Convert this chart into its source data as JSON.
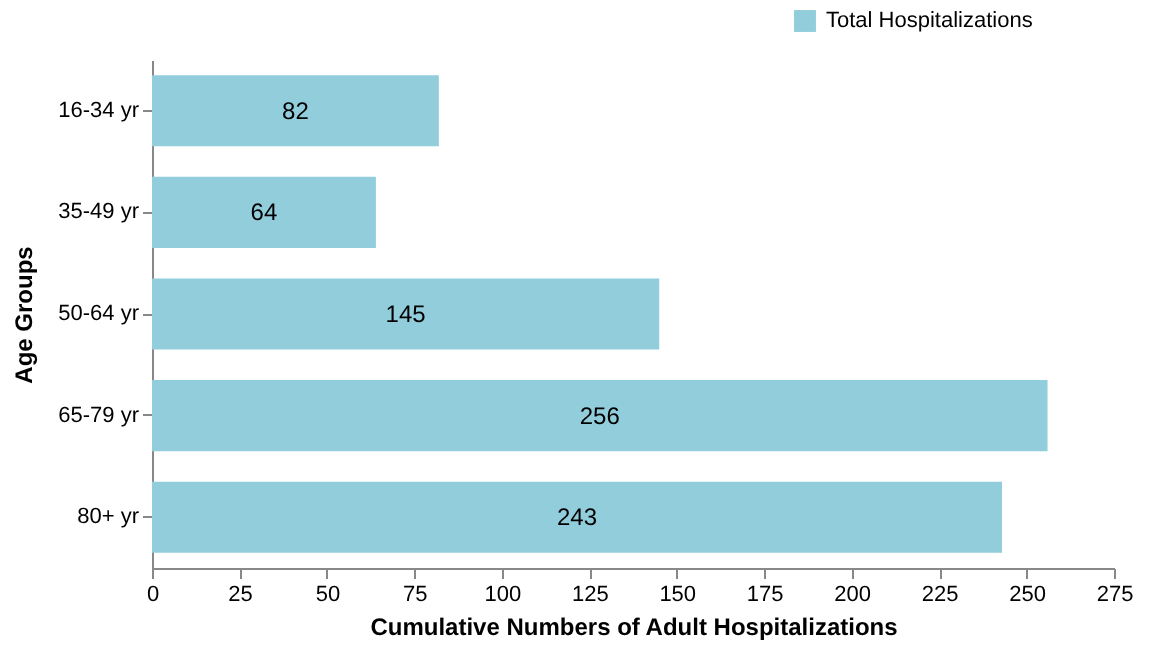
{
  "chart_data": {
    "type": "bar",
    "orientation": "horizontal",
    "xlabel": "Cumulative Numbers of Adult Hospitalizations",
    "ylabel": "Age Groups",
    "categories": [
      "16-34 yr",
      "35-49 yr",
      "50-64 yr",
      "65-79 yr",
      "80+ yr"
    ],
    "series": [
      {
        "name": "Total Hospitalizations",
        "color": "#92cddc",
        "values": [
          82,
          64,
          145,
          256,
          243
        ]
      }
    ],
    "xlim": [
      0,
      275
    ],
    "xticks": [
      0,
      25,
      50,
      75,
      100,
      125,
      150,
      175,
      200,
      225,
      250,
      275
    ],
    "data_labels": true,
    "legend": "top right",
    "grid": false
  }
}
